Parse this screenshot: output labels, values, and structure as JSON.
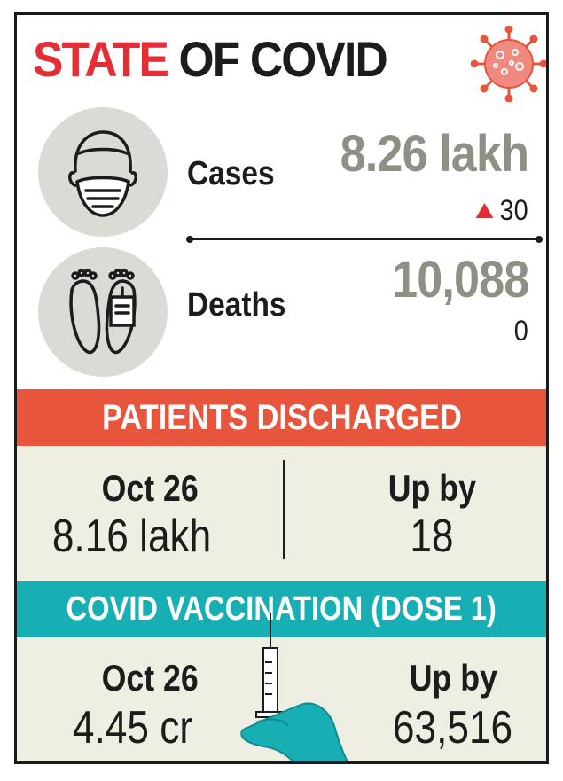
{
  "header": {
    "title_part1": "STATE",
    "title_part2": "OF COVID"
  },
  "stats": {
    "cases": {
      "label": "Cases",
      "value": "8.26 lakh",
      "change": "30"
    },
    "deaths": {
      "label": "Deaths",
      "value": "10,088",
      "change": "0"
    }
  },
  "discharged": {
    "banner": "PATIENTS DISCHARGED",
    "date_label": "Oct 26",
    "date_value": "8.16 lakh",
    "up_label": "Up by",
    "up_value": "18"
  },
  "vaccination": {
    "banner": "COVID VACCINATION (DOSE 1)",
    "date_label": "Oct 26",
    "date_value": "4.45 cr",
    "up_label": "Up by",
    "up_value": "63,516"
  },
  "colors": {
    "red": "#e42d34",
    "banner_red": "#e8553d",
    "teal": "#17aeb4",
    "value_grey": "#8f8f86",
    "panel_bg": "#efeee2"
  },
  "icons": [
    "virus-icon",
    "masked-face-icon",
    "feet-tag-icon",
    "syringe-hand-icon"
  ]
}
